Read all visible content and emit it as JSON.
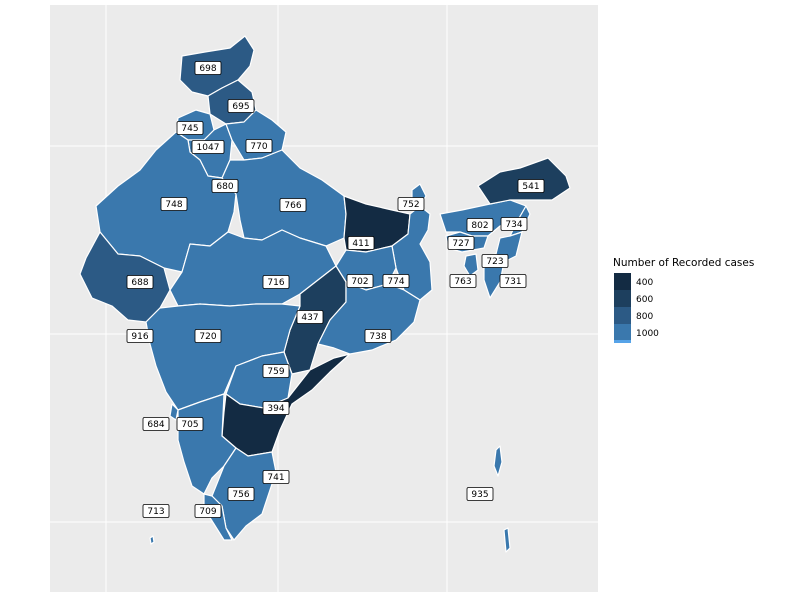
{
  "chart_data": {
    "type": "choropleth",
    "region": "India",
    "legend": {
      "title": "Number of Recorded cases",
      "position": "right",
      "ticks": [
        400,
        600,
        800,
        1000
      ],
      "colors": [
        "#132b43",
        "#1d3f5e",
        "#2c5a85",
        "#3a78ad",
        "#56a3e8"
      ]
    },
    "labels": [
      {
        "value": "698"
      },
      {
        "value": "695"
      },
      {
        "value": "745"
      },
      {
        "value": "1047"
      },
      {
        "value": "770"
      },
      {
        "value": "680"
      },
      {
        "value": "748"
      },
      {
        "value": "766"
      },
      {
        "value": "752"
      },
      {
        "value": "541"
      },
      {
        "value": "802"
      },
      {
        "value": "734"
      },
      {
        "value": "411"
      },
      {
        "value": "727"
      },
      {
        "value": "723"
      },
      {
        "value": "688"
      },
      {
        "value": "716"
      },
      {
        "value": "702"
      },
      {
        "value": "774"
      },
      {
        "value": "763"
      },
      {
        "value": "731"
      },
      {
        "value": "437"
      },
      {
        "value": "916"
      },
      {
        "value": "720"
      },
      {
        "value": "738"
      },
      {
        "value": "759"
      },
      {
        "value": "394"
      },
      {
        "value": "684"
      },
      {
        "value": "705"
      },
      {
        "value": "741"
      },
      {
        "value": "756"
      },
      {
        "value": "935"
      },
      {
        "value": "713"
      },
      {
        "value": "709"
      }
    ]
  }
}
